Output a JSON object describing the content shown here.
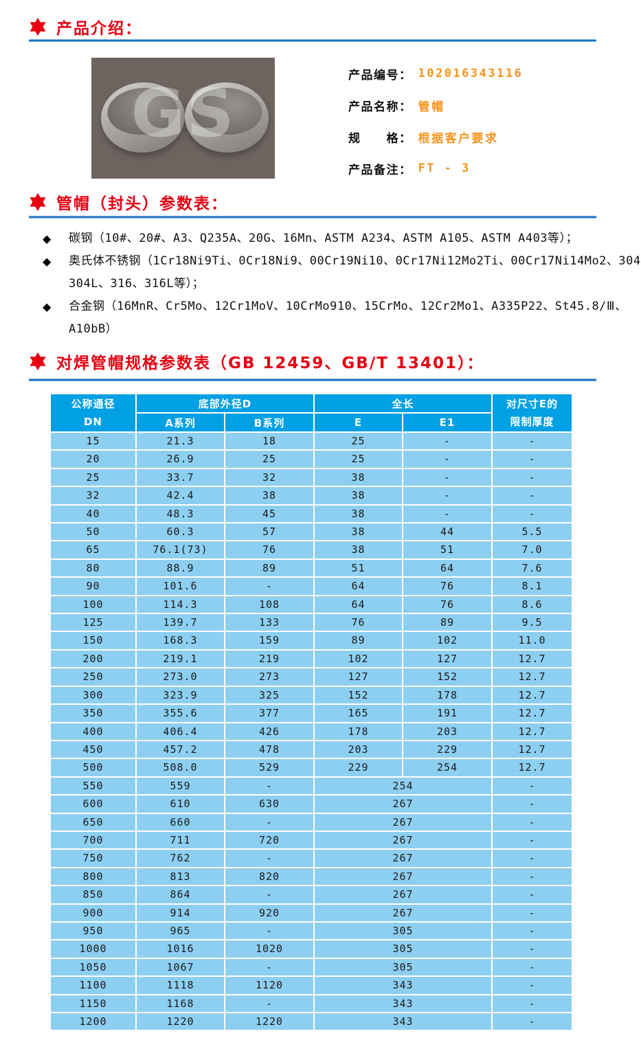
{
  "sections": {
    "intro": {
      "title": "产品介绍："
    },
    "params": {
      "title": "管帽（封头）参数表："
    },
    "spec": {
      "title": "对焊管帽规格参数表（GB 12459、GB/T 13401）："
    }
  },
  "product": {
    "image_watermark": "GS",
    "fields": [
      {
        "label": "产品编号：",
        "value": "102016343116"
      },
      {
        "label": "产品名称：",
        "value": "管帽"
      },
      {
        "label": "规　　格：",
        "value": "根据客户要求"
      },
      {
        "label": "产品备注：",
        "value": "FT - 3"
      }
    ]
  },
  "materials": {
    "marker": "◆",
    "items": [
      {
        "lines": [
          "碳钢（10#、20#、A3、Q235A、20G、16Mn、ASTM A234、ASTM A105、ASTM A403等）；"
        ]
      },
      {
        "lines": [
          "奥氏体不锈钢（1Cr18Ni9Ti、0Cr18Ni9、00Cr19Ni10、0Cr17Ni12Mo2Ti、00Cr17Ni14Mo2、304",
          "304L、316、316L等）；"
        ]
      },
      {
        "lines": [
          "合金钢（16MnR、Cr5Mo、12Cr1MoV、10CrMo910、15CrMo、12Cr2Mo1、A335P22、St45.8/Ⅲ、",
          "A10bB）"
        ]
      }
    ]
  },
  "spec_table": {
    "header": {
      "dn": [
        "公称通径",
        "DN"
      ],
      "outer_diameter_group": "底部外径D",
      "series_a": "A系列",
      "series_b": "B系列",
      "length_group": "全长",
      "e": "E",
      "e1": "E1",
      "limit": [
        "对尺寸E的",
        "限制厚度"
      ]
    },
    "rows": [
      {
        "dn": "15",
        "a": "21.3",
        "b": "18",
        "e": "25",
        "e1": "-",
        "t": "-"
      },
      {
        "dn": "20",
        "a": "26.9",
        "b": "25",
        "e": "25",
        "e1": "-",
        "t": "-"
      },
      {
        "dn": "25",
        "a": "33.7",
        "b": "32",
        "e": "38",
        "e1": "-",
        "t": "-"
      },
      {
        "dn": "32",
        "a": "42.4",
        "b": "38",
        "e": "38",
        "e1": "-",
        "t": "-"
      },
      {
        "dn": "40",
        "a": "48.3",
        "b": "45",
        "e": "38",
        "e1": "-",
        "t": "-"
      },
      {
        "dn": "50",
        "a": "60.3",
        "b": "57",
        "e": "38",
        "e1": "44",
        "t": "5.5"
      },
      {
        "dn": "65",
        "a": "76.1(73)",
        "b": "76",
        "e": "38",
        "e1": "51",
        "t": "7.0"
      },
      {
        "dn": "80",
        "a": "88.9",
        "b": "89",
        "e": "51",
        "e1": "64",
        "t": "7.6"
      },
      {
        "dn": "90",
        "a": "101.6",
        "b": "-",
        "e": "64",
        "e1": "76",
        "t": "8.1"
      },
      {
        "dn": "100",
        "a": "114.3",
        "b": "108",
        "e": "64",
        "e1": "76",
        "t": "8.6"
      },
      {
        "dn": "125",
        "a": "139.7",
        "b": "133",
        "e": "76",
        "e1": "89",
        "t": "9.5"
      },
      {
        "dn": "150",
        "a": "168.3",
        "b": "159",
        "e": "89",
        "e1": "102",
        "t": "11.0"
      },
      {
        "dn": "200",
        "a": "219.1",
        "b": "219",
        "e": "102",
        "e1": "127",
        "t": "12.7"
      },
      {
        "dn": "250",
        "a": "273.0",
        "b": "273",
        "e": "127",
        "e1": "152",
        "t": "12.7"
      },
      {
        "dn": "300",
        "a": "323.9",
        "b": "325",
        "e": "152",
        "e1": "178",
        "t": "12.7"
      },
      {
        "dn": "350",
        "a": "355.6",
        "b": "377",
        "e": "165",
        "e1": "191",
        "t": "12.7"
      },
      {
        "dn": "400",
        "a": "406.4",
        "b": "426",
        "e": "178",
        "e1": "203",
        "t": "12.7"
      },
      {
        "dn": "450",
        "a": "457.2",
        "b": "478",
        "e": "203",
        "e1": "229",
        "t": "12.7"
      },
      {
        "dn": "500",
        "a": "508.0",
        "b": "529",
        "e": "229",
        "e1": "254",
        "t": "12.7"
      },
      {
        "dn": "550",
        "a": "559",
        "b": "-",
        "e": "254",
        "e1": null,
        "t": "-"
      },
      {
        "dn": "600",
        "a": "610",
        "b": "630",
        "e": "267",
        "e1": null,
        "t": "-"
      },
      {
        "dn": "650",
        "a": "660",
        "b": "-",
        "e": "267",
        "e1": null,
        "t": "-"
      },
      {
        "dn": "700",
        "a": "711",
        "b": "720",
        "e": "267",
        "e1": null,
        "t": "-"
      },
      {
        "dn": "750",
        "a": "762",
        "b": "-",
        "e": "267",
        "e1": null,
        "t": "-"
      },
      {
        "dn": "800",
        "a": "813",
        "b": "820",
        "e": "267",
        "e1": null,
        "t": "-"
      },
      {
        "dn": "850",
        "a": "864",
        "b": "-",
        "e": "267",
        "e1": null,
        "t": "-"
      },
      {
        "dn": "900",
        "a": "914",
        "b": "920",
        "e": "267",
        "e1": null,
        "t": "-"
      },
      {
        "dn": "950",
        "a": "965",
        "b": "-",
        "e": "305",
        "e1": null,
        "t": "-"
      },
      {
        "dn": "1000",
        "a": "1016",
        "b": "1020",
        "e": "305",
        "e1": null,
        "t": "-"
      },
      {
        "dn": "1050",
        "a": "1067",
        "b": "-",
        "e": "305",
        "e1": null,
        "t": "-"
      },
      {
        "dn": "1100",
        "a": "1118",
        "b": "1120",
        "e": "343",
        "e1": null,
        "t": "-"
      },
      {
        "dn": "1150",
        "a": "1168",
        "b": "-",
        "e": "343",
        "e1": null,
        "t": "-"
      },
      {
        "dn": "1200",
        "a": "1220",
        "b": "1220",
        "e": "343",
        "e1": null,
        "t": "-"
      }
    ]
  },
  "colors": {
    "accent_red": "#e60012",
    "accent_orange": "#f7941d",
    "divider_blue": "#1f6fc2",
    "table_header_blue": "#00a0e4",
    "table_row_blue": "#8dcff1"
  }
}
